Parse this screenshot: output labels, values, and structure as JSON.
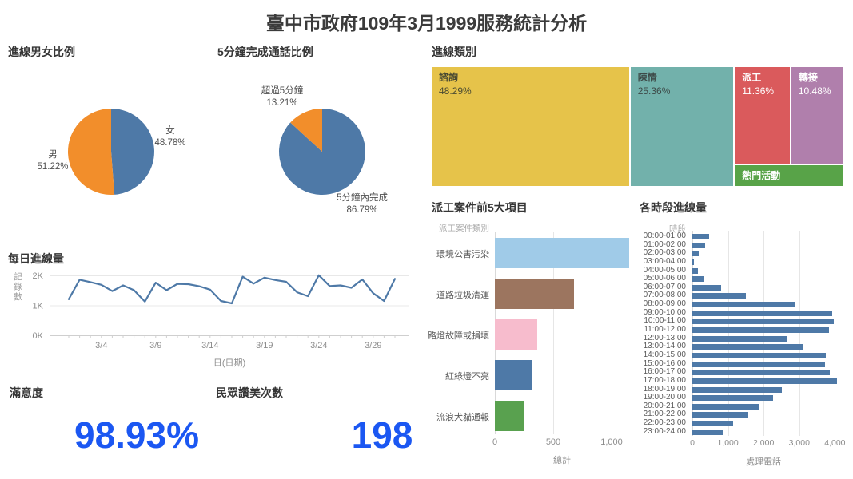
{
  "title": "臺中市政府109年3月1999服務統計分析",
  "kpis": {
    "satisfaction": {
      "label": "滿意度",
      "value": "98.93%"
    },
    "praise": {
      "label": "民眾讚美次數",
      "value": "198"
    }
  },
  "colors": {
    "kpi_value": "#1b57f2",
    "mark_blue": "#4e79a7",
    "mark_orange": "#f28e2b",
    "axis_text": "#8d8d8d"
  },
  "chart_data": [
    {
      "id": "gender_pie",
      "type": "pie",
      "title": "進線男女比例",
      "slices": [
        {
          "label": "女",
          "value": 48.78,
          "display": "48.78%",
          "color": "#4e79a7"
        },
        {
          "label": "男",
          "value": 51.22,
          "display": "51.22%",
          "color": "#f28e2b"
        }
      ]
    },
    {
      "id": "duration_pie",
      "type": "pie",
      "title": "5分鐘完成通話比例",
      "slices": [
        {
          "label": "5分鐘內完成",
          "value": 86.79,
          "display": "86.79%",
          "color": "#4e79a7"
        },
        {
          "label": "超過5分鐘",
          "value": 13.21,
          "display": "13.21%",
          "color": "#f28e2b"
        }
      ]
    },
    {
      "id": "category_treemap",
      "type": "treemap",
      "title": "進線類別",
      "items": [
        {
          "label": "諮詢",
          "value": 48.29,
          "display": "48.29%",
          "color": "#e6c34a",
          "text_color": "#4a4a32"
        },
        {
          "label": "陳情",
          "value": 25.36,
          "display": "25.36%",
          "color": "#72b1ab",
          "text_color": "#3d4a48"
        },
        {
          "label": "派工",
          "value": 11.36,
          "display": "11.36%",
          "color": "#da5a5c",
          "text_color": "#ffffff"
        },
        {
          "label": "轉接",
          "value": 10.48,
          "display": "10.48%",
          "color": "#b07fac",
          "text_color": "#ffffff"
        },
        {
          "label": "熱門活動",
          "value": null,
          "display": "",
          "color": "#58a348",
          "text_color": "#ffffff"
        }
      ]
    },
    {
      "id": "daily_line",
      "type": "line",
      "title": "每日進線量",
      "ylabel": "記錄數",
      "xlabel": "日(日期)",
      "color": "#4e79a7",
      "ylim_k": [
        0,
        2.2
      ],
      "yticks": [
        {
          "label": "0K",
          "value": 0
        },
        {
          "label": "1K",
          "value": 1
        },
        {
          "label": "2K",
          "value": 2
        }
      ],
      "xticks": [
        {
          "label": "3/4",
          "day": 4
        },
        {
          "label": "3/9",
          "day": 9
        },
        {
          "label": "3/14",
          "day": 14
        },
        {
          "label": "3/19",
          "day": 19
        },
        {
          "label": "3/24",
          "day": 24
        },
        {
          "label": "3/29",
          "day": 29
        }
      ],
      "x": [
        "3/1",
        "3/2",
        "3/3",
        "3/4",
        "3/5",
        "3/6",
        "3/7",
        "3/8",
        "3/9",
        "3/10",
        "3/11",
        "3/12",
        "3/13",
        "3/14",
        "3/15",
        "3/16",
        "3/17",
        "3/18",
        "3/19",
        "3/20",
        "3/21",
        "3/22",
        "3/23",
        "3/24",
        "3/25",
        "3/26",
        "3/27",
        "3/28",
        "3/29",
        "3/30",
        "3/31"
      ],
      "values_k": [
        1.22,
        1.87,
        1.79,
        1.7,
        1.49,
        1.68,
        1.52,
        1.14,
        1.77,
        1.52,
        1.73,
        1.72,
        1.65,
        1.54,
        1.16,
        1.08,
        1.97,
        1.74,
        1.94,
        1.86,
        1.8,
        1.45,
        1.32,
        2.02,
        1.66,
        1.68,
        1.6,
        1.88,
        1.42,
        1.16,
        1.9
      ]
    },
    {
      "id": "dispatch_bar",
      "type": "bar",
      "title": "派工案件前5大項目",
      "col_header": "派工案件類別",
      "xlabel": "總計",
      "xlim": [
        0,
        1170
      ],
      "xticks": [
        {
          "label": "0",
          "value": 0
        },
        {
          "label": "500",
          "value": 500
        },
        {
          "label": "1,000",
          "value": 1000
        }
      ],
      "categories": [
        "環境公害污染",
        "道路垃圾清運",
        "路燈故障或損壞",
        "紅綠燈不亮",
        "流浪犬貓通報"
      ],
      "values": [
        1150,
        680,
        360,
        320,
        250
      ],
      "colors": [
        "#a0cbe8",
        "#9c755f",
        "#f7bccd",
        "#4e79a7",
        "#59a14f"
      ]
    },
    {
      "id": "hourly_bar",
      "type": "bar",
      "title": "各時段進線量",
      "col_header": "時段",
      "xlabel": "處理電話",
      "xlim": [
        0,
        4200
      ],
      "color": "#4e79a7",
      "xticks": [
        {
          "label": "0",
          "value": 0
        },
        {
          "label": "1,000",
          "value": 1000
        },
        {
          "label": "2,000",
          "value": 2000
        },
        {
          "label": "3,000",
          "value": 3000
        },
        {
          "label": "4,000",
          "value": 4000
        }
      ],
      "categories": [
        "00:00-01:00",
        "01:00-02:00",
        "02:00-03:00",
        "03:00-04:00",
        "04:00-05:00",
        "05:00-06:00",
        "06:00-07:00",
        "07:00-08:00",
        "08:00-09:00",
        "09:00-10:00",
        "10:00-11:00",
        "11:00-12:00",
        "12:00-13:00",
        "13:00-14:00",
        "14:00-15:00",
        "15:00-16:00",
        "16:00-17:00",
        "17:00-18:00",
        "18:00-19:00",
        "19:00-20:00",
        "20:00-21:00",
        "21:00-22:00",
        "22:00-23:00",
        "23:00-24:00"
      ],
      "values": [
        480,
        350,
        170,
        35,
        155,
        315,
        800,
        1500,
        2900,
        3930,
        3970,
        3840,
        2650,
        3100,
        3750,
        3720,
        3860,
        4060,
        2500,
        2260,
        1880,
        1560,
        1150,
        860
      ]
    }
  ]
}
